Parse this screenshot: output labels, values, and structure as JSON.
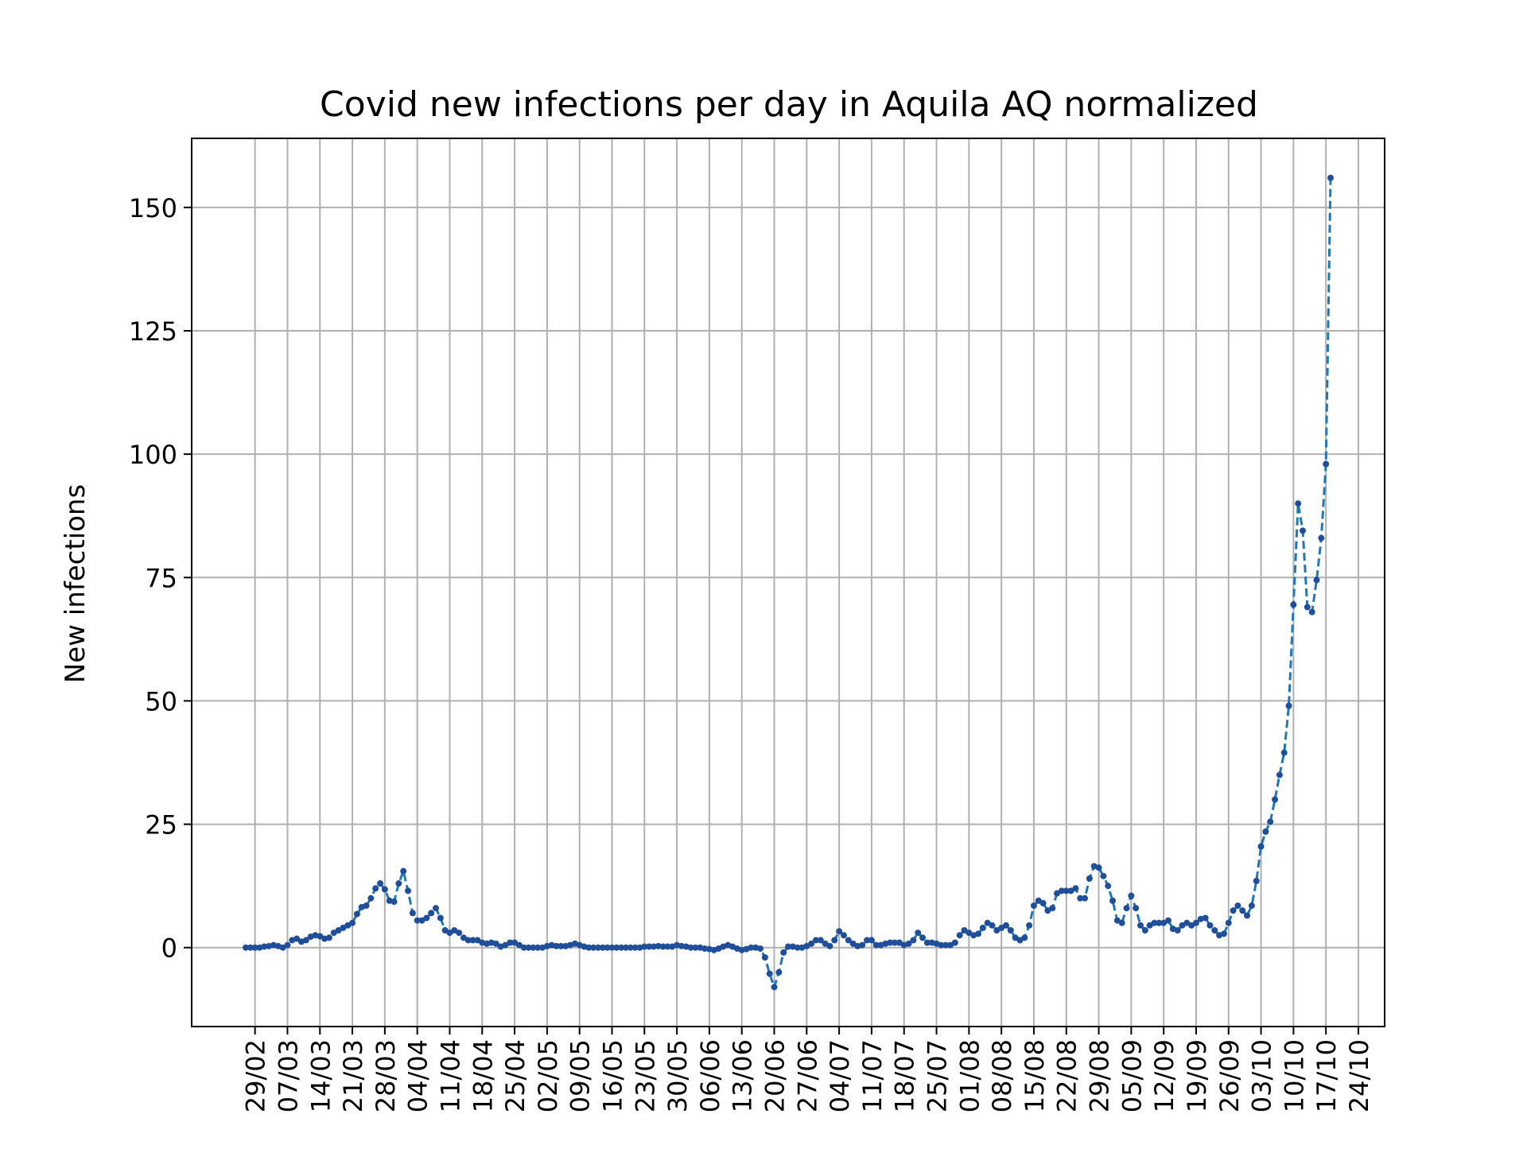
{
  "chart_data": {
    "type": "line",
    "title": "Covid new infections per day in Aquila AQ normalized",
    "xlabel": "",
    "ylabel": "New infections",
    "ylim": [
      -16,
      164
    ],
    "y_ticks": [
      0,
      25,
      50,
      75,
      100,
      125,
      150
    ],
    "x_ticks": [
      "29/02",
      "07/03",
      "14/03",
      "21/03",
      "28/03",
      "04/04",
      "11/04",
      "18/04",
      "25/04",
      "02/05",
      "09/05",
      "16/05",
      "23/05",
      "30/05",
      "06/06",
      "13/06",
      "20/06",
      "27/06",
      "04/07",
      "11/07",
      "18/07",
      "25/07",
      "01/08",
      "08/08",
      "15/08",
      "22/08",
      "29/08",
      "05/09",
      "12/09",
      "19/09",
      "26/09",
      "03/10",
      "10/10",
      "17/10",
      "24/10"
    ],
    "grid": true,
    "line_style": "dashed",
    "marker": "dot",
    "colors": {
      "line": "#1f77b4",
      "marker": "#1f4e9a",
      "grid": "#b0b0b0"
    },
    "series": [
      {
        "start": "27/02",
        "values": [
          0,
          0,
          0,
          0,
          0.2,
          0.3,
          0.5,
          0.3,
          0,
          0.5,
          1.5,
          1.8,
          1.2,
          1.5,
          2.2,
          2.5,
          2.3,
          1.8,
          2.0,
          3.0,
          3.5,
          4.0,
          4.5,
          5.0,
          6.8,
          8.2,
          8.5,
          10.0,
          12.0,
          13.0,
          11.8,
          9.5,
          9.3,
          13.0,
          15.5,
          11.5,
          7.0,
          5.5,
          5.5,
          6.0,
          7.0,
          8.0,
          6.0,
          3.5,
          3.0,
          3.5,
          3.0,
          2.0,
          1.5,
          1.5,
          1.5,
          1.0,
          0.8,
          1.0,
          0.8,
          0.2,
          0.5,
          1.0,
          1.0,
          0.5,
          0,
          0,
          0,
          0,
          0,
          0.3,
          0.5,
          0.3,
          0.3,
          0.3,
          0.5,
          0.8,
          0.5,
          0.2,
          0,
          0,
          0,
          0,
          0,
          0,
          0,
          0,
          0,
          0,
          0,
          0,
          0.2,
          0.2,
          0.2,
          0.3,
          0.2,
          0.2,
          0.2,
          0.5,
          0.3,
          0.2,
          0,
          0,
          0,
          -0.2,
          -0.3,
          -0.5,
          -0.2,
          0.2,
          0.5,
          0.2,
          -0.2,
          -0.5,
          -0.3,
          0,
          0,
          -0.2,
          -2.0,
          -5.3,
          -8.0,
          -5.0,
          -1.0,
          0.2,
          0.2,
          0,
          0,
          0.3,
          0.8,
          1.5,
          1.5,
          0.8,
          0.3,
          1.5,
          3.3,
          2.5,
          1.5,
          0.8,
          0.3,
          0.5,
          1.5,
          1.5,
          0.5,
          0.5,
          0.8,
          1.0,
          1.0,
          1.0,
          0.5,
          0.8,
          1.5,
          3.0,
          2.0,
          1.0,
          1.0,
          0.8,
          0.5,
          0.5,
          0.5,
          1.0,
          2.5,
          3.5,
          3.0,
          2.5,
          2.8,
          4.0,
          5.0,
          4.5,
          3.5,
          4.0,
          4.5,
          3.5,
          2.0,
          1.5,
          2.0,
          4.5,
          8.5,
          9.5,
          9.0,
          7.5,
          8.0,
          11.0,
          11.5,
          11.5,
          11.5,
          12.0,
          10.0,
          10.0,
          14.0,
          16.5,
          16.2,
          14.5,
          12.5,
          9.5,
          5.5,
          5.0,
          8.0,
          10.5,
          8.0,
          4.5,
          3.5,
          4.5,
          5.0,
          5.0,
          5.0,
          5.5,
          3.8,
          3.5,
          4.5,
          5.0,
          4.5,
          5.0,
          5.8,
          6.0,
          4.5,
          3.5,
          2.5,
          2.8,
          5.0,
          7.5,
          8.5,
          7.5,
          6.5,
          8.5,
          13.5,
          20.5,
          23.5,
          25.5,
          30.0,
          35.0,
          39.5,
          49.0,
          69.5,
          90.0,
          84.5,
          69.0,
          68.0,
          74.5,
          83.0,
          98.0,
          156.0
        ]
      }
    ]
  }
}
